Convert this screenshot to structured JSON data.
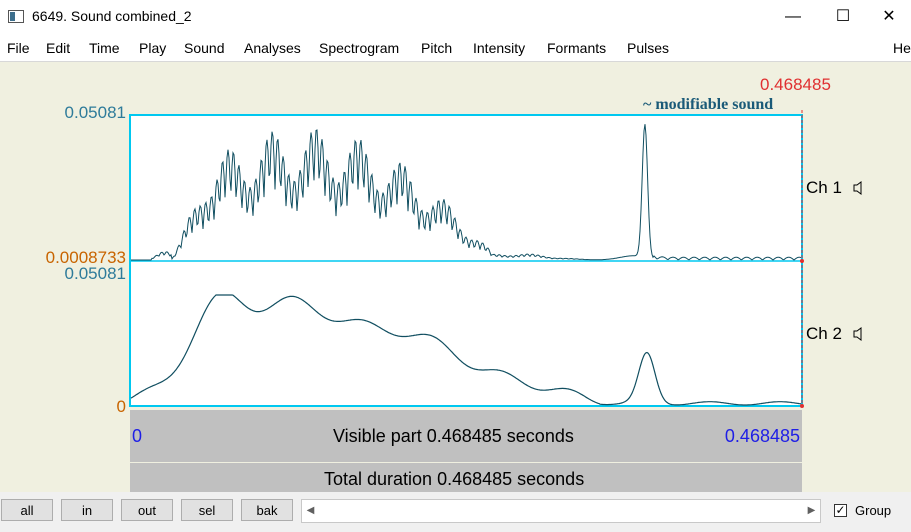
{
  "window": {
    "title": "6649. Sound combined_2",
    "minimize_glyph": "—",
    "maximize_glyph": "☐",
    "close_glyph": "✕"
  },
  "menu": [
    "File",
    "Edit",
    "Time",
    "Play",
    "Sound",
    "Analyses",
    "Spectrogram",
    "Pitch",
    "Intensity",
    "Formants",
    "Pulses",
    "He"
  ],
  "cursor": {
    "time_label": "0.468485"
  },
  "annotation": "~ modifiable sound",
  "channels": [
    {
      "label": "Ch 1",
      "speaker_icon": "speaker-icon",
      "y_max": "0.05081",
      "y_min": "0.0008733"
    },
    {
      "label": "Ch 2",
      "speaker_icon": "speaker-icon",
      "y_max": "0.05081",
      "y_min": "0"
    }
  ],
  "visible_bar": {
    "start": "0",
    "text": "Visible part 0.468485 seconds",
    "end": "0.468485"
  },
  "total_bar": {
    "text": "Total duration 0.468485 seconds"
  },
  "buttons": {
    "all": "all",
    "in": "in",
    "out": "out",
    "sel": "sel",
    "bak": "bak"
  },
  "scroll": {
    "left_glyph": "◀",
    "right_glyph": "▶"
  },
  "group": {
    "label": "Group",
    "checked": true,
    "check_glyph": "✓"
  },
  "colors": {
    "axis_label": "#2e7b9a",
    "min_label": "#c86400",
    "waveform": "#104e60",
    "frame": "#00c8f0",
    "cursor": "#e03030",
    "time_blue": "#1e1ee6"
  }
}
